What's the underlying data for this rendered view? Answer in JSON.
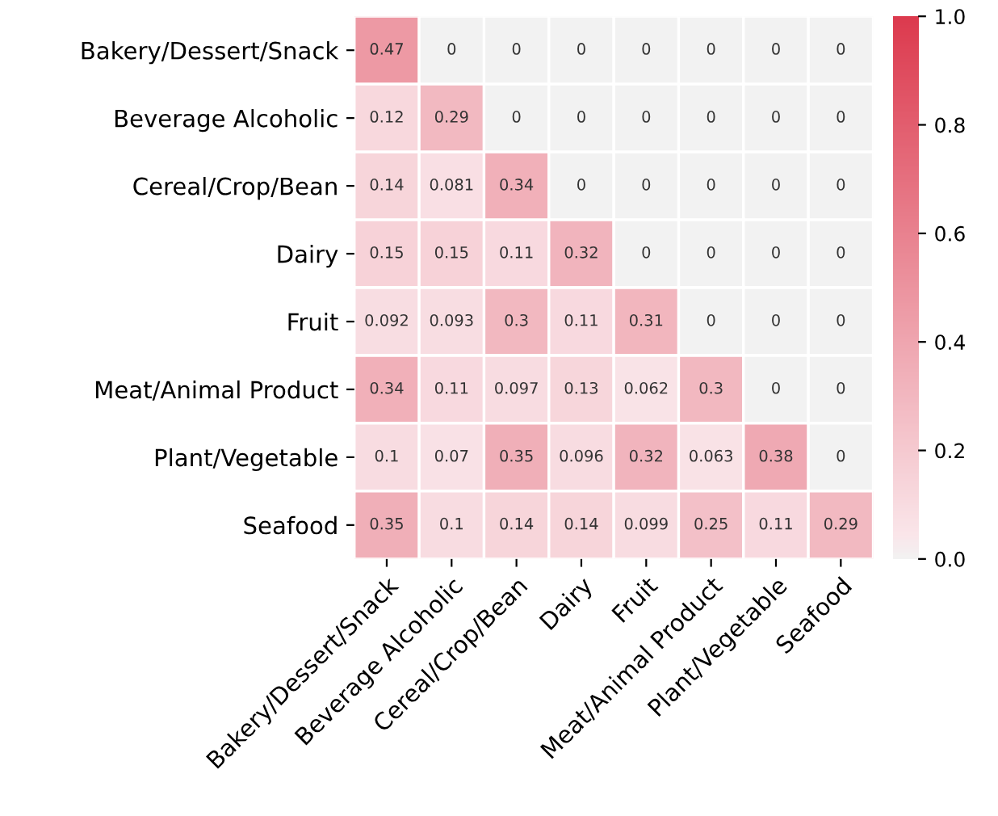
{
  "chart_data": {
    "type": "heatmap",
    "categories": [
      "Bakery/Dessert/Snack",
      "Beverage Alcoholic",
      "Cereal/Crop/Bean",
      "Dairy",
      "Fruit",
      "Meat/Animal Product",
      "Plant/Vegetable",
      "Seafood"
    ],
    "y_categories": [
      "Bakery/Dessert/Snack",
      "Beverage Alcoholic",
      "Cereal/Crop/Bean",
      "Dairy",
      "Fruit",
      "Meat/Animal Product",
      "Plant/Vegetable",
      "Seafood"
    ],
    "cells": [
      [
        0.47,
        0,
        0,
        0,
        0,
        0,
        0,
        0
      ],
      [
        0.12,
        0.29,
        0,
        0,
        0,
        0,
        0,
        0
      ],
      [
        0.14,
        0.081,
        0.34,
        0,
        0,
        0,
        0,
        0
      ],
      [
        0.15,
        0.15,
        0.11,
        0.32,
        0,
        0,
        0,
        0
      ],
      [
        0.092,
        0.093,
        0.3,
        0.11,
        0.31,
        0,
        0,
        0
      ],
      [
        0.34,
        0.11,
        0.097,
        0.13,
        0.062,
        0.3,
        0,
        0
      ],
      [
        0.1,
        0.07,
        0.35,
        0.096,
        0.32,
        0.063,
        0.38,
        0
      ],
      [
        0.35,
        0.1,
        0.14,
        0.14,
        0.099,
        0.25,
        0.11,
        0.29
      ]
    ],
    "clim": [
      0,
      1.0
    ],
    "cticks": [
      {
        "value": 0,
        "label": "0.0"
      },
      {
        "value": 0.2,
        "label": "0.2"
      },
      {
        "value": 0.4,
        "label": "0.4"
      },
      {
        "value": 0.6,
        "label": "0.6"
      },
      {
        "value": 0.8,
        "label": "0.8"
      },
      {
        "value": 1.0,
        "label": "1.0"
      }
    ],
    "data_labels": true
  }
}
